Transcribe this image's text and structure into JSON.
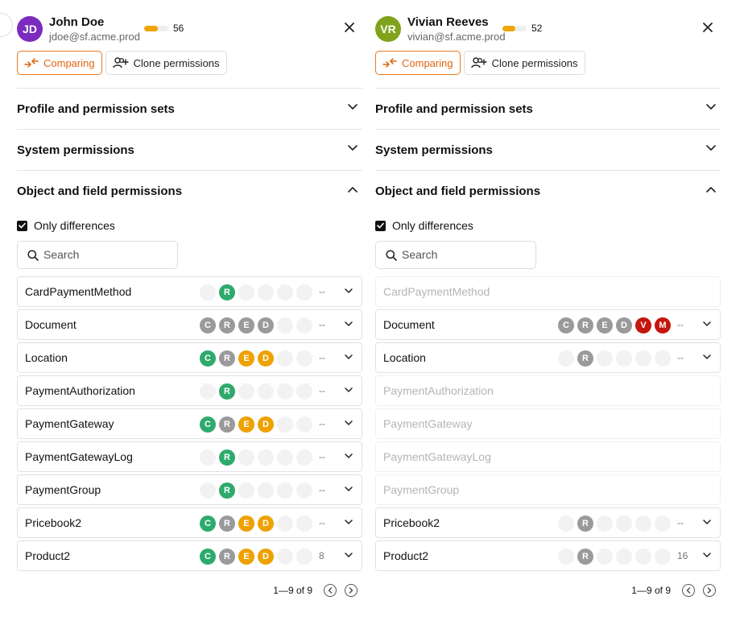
{
  "panels": [
    {
      "user": {
        "initials": "JD",
        "name": "John Doe",
        "email": "jdoe@sf.acme.prod",
        "score": "56",
        "score_fraction": 0.56,
        "avatar_color": "#7b2cbf"
      },
      "buttons": {
        "comparing": "Comparing",
        "clone": "Clone permissions"
      },
      "sections": [
        "Profile and permission sets",
        "System permissions",
        "Object and field permissions"
      ],
      "only_differences": "Only differences",
      "search_placeholder": "Search",
      "rows": [
        {
          "name": "CardPaymentMethod",
          "muted": false,
          "badges": [
            "",
            "green:R",
            "",
            "",
            "",
            "",
            ""
          ],
          "count": "--"
        },
        {
          "name": "Document",
          "muted": false,
          "badges": [
            "grey:C",
            "grey:R",
            "grey:E",
            "grey:D",
            "",
            ""
          ],
          "count": "--"
        },
        {
          "name": "Location",
          "muted": false,
          "badges": [
            "green:C",
            "grey:R",
            "orange:E",
            "orange:D",
            "",
            ""
          ],
          "count": "--"
        },
        {
          "name": "PaymentAuthorization",
          "muted": false,
          "badges": [
            "",
            "green:R",
            "",
            "",
            "",
            ""
          ],
          "count": "--"
        },
        {
          "name": "PaymentGateway",
          "muted": false,
          "badges": [
            "green:C",
            "grey:R",
            "orange:E",
            "orange:D",
            "",
            ""
          ],
          "count": "--"
        },
        {
          "name": "PaymentGatewayLog",
          "muted": false,
          "badges": [
            "",
            "green:R",
            "",
            "",
            "",
            ""
          ],
          "count": "--"
        },
        {
          "name": "PaymentGroup",
          "muted": false,
          "badges": [
            "",
            "green:R",
            "",
            "",
            "",
            ""
          ],
          "count": "--"
        },
        {
          "name": "Pricebook2",
          "muted": false,
          "badges": [
            "green:C",
            "grey:R",
            "orange:E",
            "orange:D",
            "",
            ""
          ],
          "count": "--"
        },
        {
          "name": "Product2",
          "muted": false,
          "badges": [
            "green:C",
            "grey:R",
            "orange:E",
            "orange:D",
            "",
            ""
          ],
          "count": "8"
        }
      ],
      "pager": "1—9 of 9"
    },
    {
      "user": {
        "initials": "VR",
        "name": "Vivian Reeves",
        "email": "vivian@sf.acme.prod",
        "score": "52",
        "score_fraction": 0.52,
        "avatar_color": "#7fa31a"
      },
      "buttons": {
        "comparing": "Comparing",
        "clone": "Clone permissions"
      },
      "sections": [
        "Profile and permission sets",
        "System permissions",
        "Object and field permissions"
      ],
      "only_differences": "Only differences",
      "search_placeholder": "Search",
      "rows": [
        {
          "name": "CardPaymentMethod",
          "muted": true,
          "badges": [],
          "count": ""
        },
        {
          "name": "Document",
          "muted": false,
          "badges": [
            "grey:C",
            "grey:R",
            "grey:E",
            "grey:D",
            "red:V",
            "red:M"
          ],
          "count": "--"
        },
        {
          "name": "Location",
          "muted": false,
          "badges": [
            "",
            "grey:R",
            "",
            "",
            "",
            ""
          ],
          "count": "--"
        },
        {
          "name": "PaymentAuthorization",
          "muted": true,
          "badges": [],
          "count": ""
        },
        {
          "name": "PaymentGateway",
          "muted": true,
          "badges": [],
          "count": ""
        },
        {
          "name": "PaymentGatewayLog",
          "muted": true,
          "badges": [],
          "count": ""
        },
        {
          "name": "PaymentGroup",
          "muted": true,
          "badges": [],
          "count": ""
        },
        {
          "name": "Pricebook2",
          "muted": false,
          "badges": [
            "",
            "grey:R",
            "",
            "",
            "",
            ""
          ],
          "count": "--"
        },
        {
          "name": "Product2",
          "muted": false,
          "badges": [
            "",
            "grey:R",
            "",
            "",
            "",
            ""
          ],
          "count": "16"
        }
      ],
      "pager": "1—9 of 9"
    }
  ],
  "icons": {
    "close": "close-icon",
    "comparing": "compare-arrows-icon",
    "clone": "add-users-icon",
    "chevron_down": "chevron-down-icon",
    "chevron_up": "chevron-up-icon",
    "search": "search-icon",
    "prev": "chevron-left-circle-icon",
    "next": "chevron-right-circle-icon"
  },
  "colors": {
    "accent": "#e0650f",
    "green": "#2eaa6c",
    "orange": "#eea100",
    "grey": "#9a9a9a",
    "red": "#c4170d"
  }
}
